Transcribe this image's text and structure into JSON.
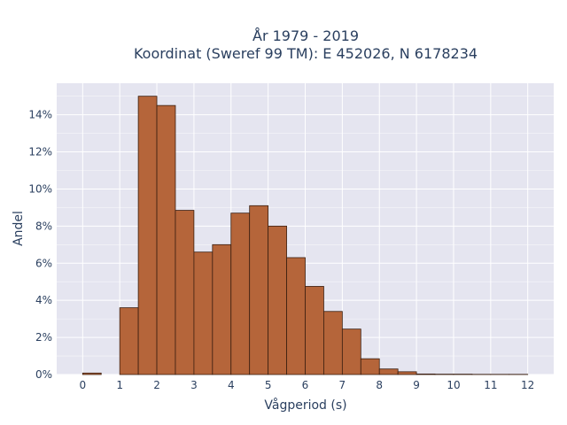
{
  "chart_data": {
    "type": "bar",
    "title_lines": [
      "År 1979 - 2019",
      "Koordinat (Sweref 99 TM): E 452026, N 6178234"
    ],
    "xlabel": "Vågperiod (s)",
    "ylabel": "Andel",
    "xlim": [
      -0.7,
      12.7
    ],
    "ylim": [
      0,
      15.7
    ],
    "x_ticks": [
      0,
      1,
      2,
      3,
      4,
      5,
      6,
      7,
      8,
      9,
      10,
      11,
      12
    ],
    "y_ticks": [
      0,
      2,
      4,
      6,
      8,
      10,
      12,
      14
    ],
    "y_tick_suffix": "%",
    "grid": true,
    "colors": {
      "bar_fill": "#b5653a",
      "bar_edge": "#3a1e10",
      "plot_bg": "#e5e5f0",
      "grid": "#ffffff"
    },
    "bin_width": 0.5,
    "bins": [
      {
        "x0": 0.0,
        "value": 0.08
      },
      {
        "x0": 0.5,
        "value": 0.0
      },
      {
        "x0": 1.0,
        "value": 3.6
      },
      {
        "x0": 1.5,
        "value": 15.0
      },
      {
        "x0": 2.0,
        "value": 14.5
      },
      {
        "x0": 2.5,
        "value": 8.85
      },
      {
        "x0": 3.0,
        "value": 6.6
      },
      {
        "x0": 3.5,
        "value": 7.0
      },
      {
        "x0": 4.0,
        "value": 8.7
      },
      {
        "x0": 4.5,
        "value": 9.1
      },
      {
        "x0": 5.0,
        "value": 8.0
      },
      {
        "x0": 5.5,
        "value": 6.3
      },
      {
        "x0": 6.0,
        "value": 4.75
      },
      {
        "x0": 6.5,
        "value": 3.4
      },
      {
        "x0": 7.0,
        "value": 2.45
      },
      {
        "x0": 7.5,
        "value": 0.85
      },
      {
        "x0": 8.0,
        "value": 0.3
      },
      {
        "x0": 8.5,
        "value": 0.15
      },
      {
        "x0": 9.0,
        "value": 0.03
      },
      {
        "x0": 9.5,
        "value": 0.02
      },
      {
        "x0": 10.0,
        "value": 0.02
      },
      {
        "x0": 10.5,
        "value": 0.01
      },
      {
        "x0": 11.0,
        "value": 0.01
      },
      {
        "x0": 11.5,
        "value": 0.01
      }
    ]
  }
}
